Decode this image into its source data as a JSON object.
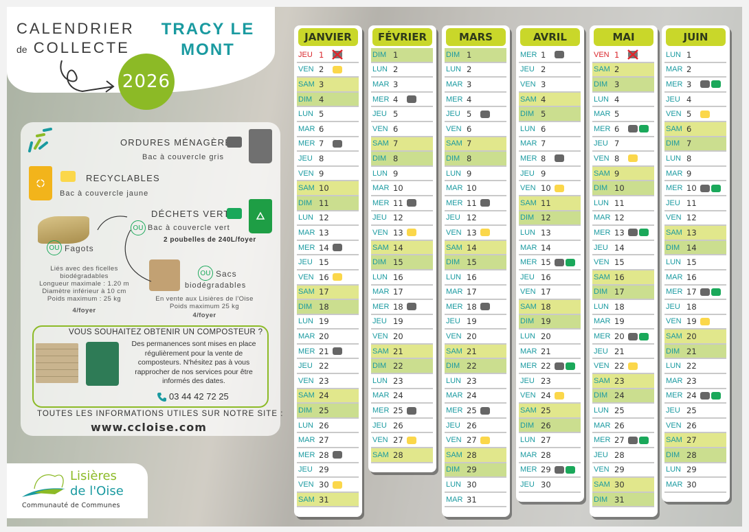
{
  "header": {
    "title_line1": "CALENDRIER",
    "title_de": "de",
    "title_line2": "COLLECTE",
    "year": "2026",
    "town": "TRACY LE MONT"
  },
  "legend": {
    "household": {
      "title": "ORDURES MÉNAGÈRES",
      "sub": "Bac à couvercle gris",
      "color": "#666666"
    },
    "recyclables": {
      "title": "RECYCLABLES",
      "sub": "Bac à couvercle jaune",
      "color": "#fbd74a"
    },
    "green_waste": {
      "title": "DÉCHETS VERTS",
      "ou": "OU",
      "sub": "Bac à couvercle vert",
      "note": "2 poubelles de 240L/foyer",
      "color": "#1aa85a"
    },
    "bundles": {
      "ou": "OU",
      "title": "Fagots",
      "lines": [
        "Liés avec des ficelles",
        "biodégradables",
        "Longueur maximale : 1.20 m",
        "Diamètre inférieur à 10 cm",
        "Poids maximum : 25 kg"
      ],
      "limit": "4/foyer"
    },
    "bags": {
      "ou": "OU",
      "title1": "Sacs",
      "title2": "biodégradables",
      "lines": [
        "En vente aux Lisières de l'Oise",
        "Poids maximum 25 kg"
      ],
      "limit": "4/foyer"
    }
  },
  "composter": {
    "title": "VOUS SOUHAITEZ OBTENIR UN COMPOSTEUR ?",
    "text": "Des permanences sont mises en place régulièrement pour la vente de composteurs. N'hésitez pas à vous rapprocher de nos services pour être informés des dates.",
    "phone": "03 44 42 72 25"
  },
  "website": {
    "label": "TOUTES LES INFORMATIONS UTILES SUR NOTRE SITE :",
    "url": "www.ccloise.com"
  },
  "logo": {
    "name1": "Lisières",
    "name2": "de l'Oise",
    "sub": "Communauté de Communes"
  },
  "weekdays": [
    "LUN",
    "MAR",
    "MER",
    "JEU",
    "VEN",
    "SAM",
    "DIM"
  ],
  "months": [
    {
      "name": "JANVIER",
      "start": 3,
      "days": 31,
      "holiday": [
        1
      ],
      "grey": [
        7,
        14,
        21,
        28
      ],
      "yellow": [
        2,
        16,
        30
      ],
      "green": []
    },
    {
      "name": "FÉVRIER",
      "start": 6,
      "days": 28,
      "holiday": [],
      "grey": [
        4,
        11,
        18,
        25
      ],
      "yellow": [
        13,
        27
      ],
      "green": []
    },
    {
      "name": "MARS",
      "start": 6,
      "days": 31,
      "holiday": [],
      "grey": [
        5,
        11,
        18,
        25
      ],
      "yellow": [
        13,
        27
      ],
      "green": []
    },
    {
      "name": "AVRIL",
      "start": 2,
      "days": 30,
      "holiday": [],
      "grey": [
        1,
        8,
        15,
        22,
        29
      ],
      "yellow": [
        10,
        24
      ],
      "green": [
        15,
        22,
        29
      ]
    },
    {
      "name": "MAI",
      "start": 4,
      "days": 31,
      "holiday": [
        1
      ],
      "grey": [
        6,
        13,
        20,
        27
      ],
      "yellow": [
        8,
        22
      ],
      "green": [
        6,
        13,
        20,
        27
      ]
    },
    {
      "name": "JUIN",
      "start": 0,
      "days": 30,
      "holiday": [],
      "grey": [
        3,
        10,
        17,
        24
      ],
      "yellow": [
        5,
        19
      ],
      "green": [
        3,
        10,
        17,
        24
      ]
    }
  ]
}
